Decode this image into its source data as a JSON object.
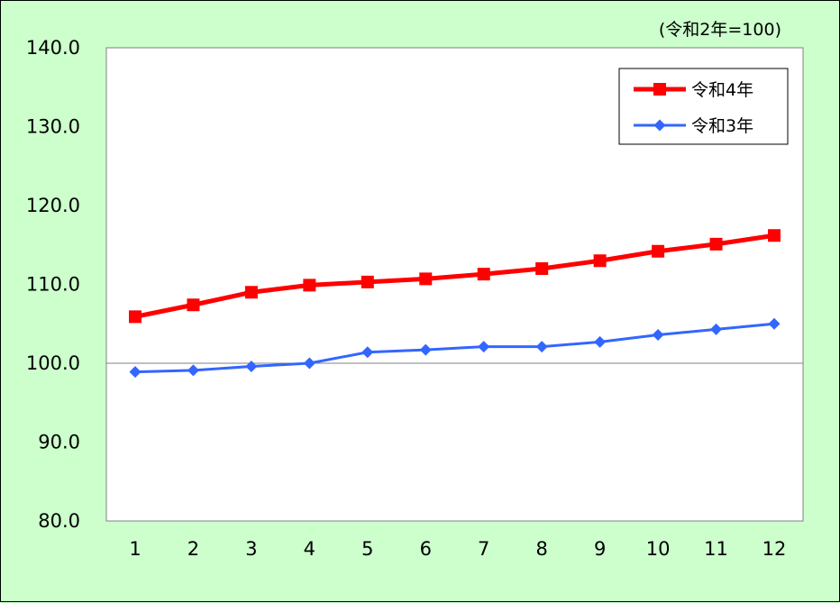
{
  "chart_data": {
    "type": "line",
    "title": "",
    "note": "(令和2年=100)",
    "xlabel": "",
    "ylabel": "",
    "categories": [
      "1",
      "2",
      "3",
      "4",
      "5",
      "6",
      "7",
      "8",
      "9",
      "10",
      "11",
      "12"
    ],
    "y_ticks": [
      "80.0",
      "90.0",
      "100.0",
      "110.0",
      "120.0",
      "130.0",
      "140.0"
    ],
    "ylim": [
      80,
      140
    ],
    "reference_line": 100,
    "legend_position": "top-right",
    "series": [
      {
        "name": "令和4年",
        "color": "#ff0000",
        "marker": "square",
        "values": [
          105.9,
          107.4,
          109.0,
          109.9,
          110.3,
          110.7,
          111.3,
          112.0,
          113.0,
          114.2,
          115.1,
          116.2
        ]
      },
      {
        "name": "令和3年",
        "color": "#3366ff",
        "marker": "diamond",
        "values": [
          98.9,
          99.1,
          99.6,
          100.0,
          101.4,
          101.7,
          102.1,
          102.1,
          102.7,
          103.6,
          104.3,
          105.0
        ]
      }
    ]
  }
}
